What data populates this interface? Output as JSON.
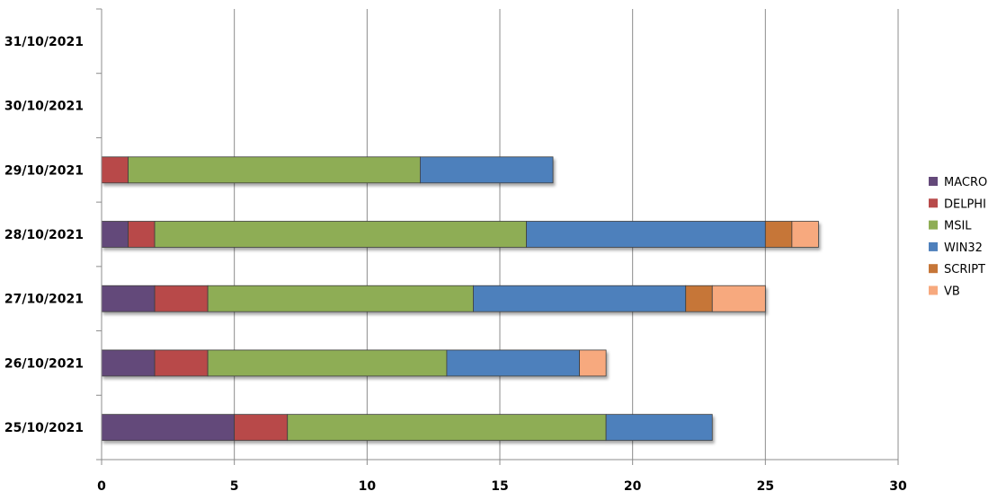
{
  "chart_data": {
    "type": "bar",
    "orientation": "horizontal",
    "stacked": true,
    "title": "",
    "xlabel": "",
    "ylabel": "",
    "xlim": [
      0,
      30
    ],
    "x_ticks": [
      0,
      5,
      10,
      15,
      20,
      25,
      30
    ],
    "grid": "vertical",
    "legend_position": "right",
    "categories": [
      "25/10/2021",
      "26/10/2021",
      "27/10/2021",
      "28/10/2021",
      "29/10/2021",
      "30/10/2021",
      "31/10/2021"
    ],
    "series": [
      {
        "name": "MACRO",
        "color": "#64497A",
        "values": [
          5,
          2,
          2,
          1,
          0,
          0,
          0
        ]
      },
      {
        "name": "DELPHI",
        "color": "#B84A4A",
        "values": [
          2,
          2,
          2,
          1,
          1,
          0,
          0
        ]
      },
      {
        "name": "MSIL",
        "color": "#8EAD54",
        "values": [
          12,
          9,
          10,
          14,
          11,
          0,
          0
        ]
      },
      {
        "name": "WIN32",
        "color": "#4E80BC",
        "values": [
          4,
          5,
          8,
          9,
          5,
          0,
          0
        ]
      },
      {
        "name": "SCRIPT",
        "color": "#C67638",
        "values": [
          0,
          0,
          1,
          1,
          0,
          0,
          0
        ]
      },
      {
        "name": "VB",
        "color": "#F7A97E",
        "values": [
          0,
          1,
          2,
          1,
          0,
          0,
          0
        ]
      }
    ]
  }
}
